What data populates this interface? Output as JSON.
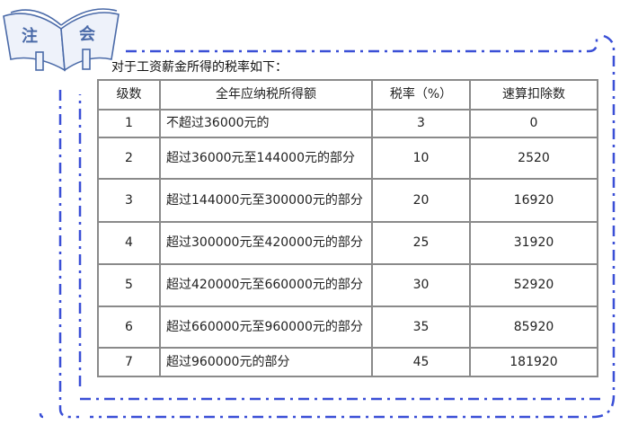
{
  "logo": {
    "left_char": "注",
    "right_char": "会"
  },
  "intro": "对于工资薪金所得的税率如下：",
  "table": {
    "headers": [
      "级数",
      "全年应纳税所得额",
      "税率（%）",
      "速算扣除数"
    ],
    "rows": [
      [
        "1",
        "不超过36000元的",
        "3",
        "0"
      ],
      [
        "2",
        "超过36000元至144000元的部分",
        "10",
        "2520"
      ],
      [
        "3",
        "超过144000元至300000元的部分",
        "20",
        "16920"
      ],
      [
        "4",
        "超过300000元至420000元的部分",
        "25",
        "31920"
      ],
      [
        "5",
        "超过420000元至660000元的部分",
        "30",
        "52920"
      ],
      [
        "6",
        "超过660000元至960000元的部分",
        "35",
        "85920"
      ],
      [
        "7",
        "超过960000元的部分",
        "45",
        "181920"
      ]
    ]
  },
  "colors": {
    "frame": "#3a4fd6",
    "logo": "#4a6aa8",
    "border": "#8a8a8a"
  }
}
